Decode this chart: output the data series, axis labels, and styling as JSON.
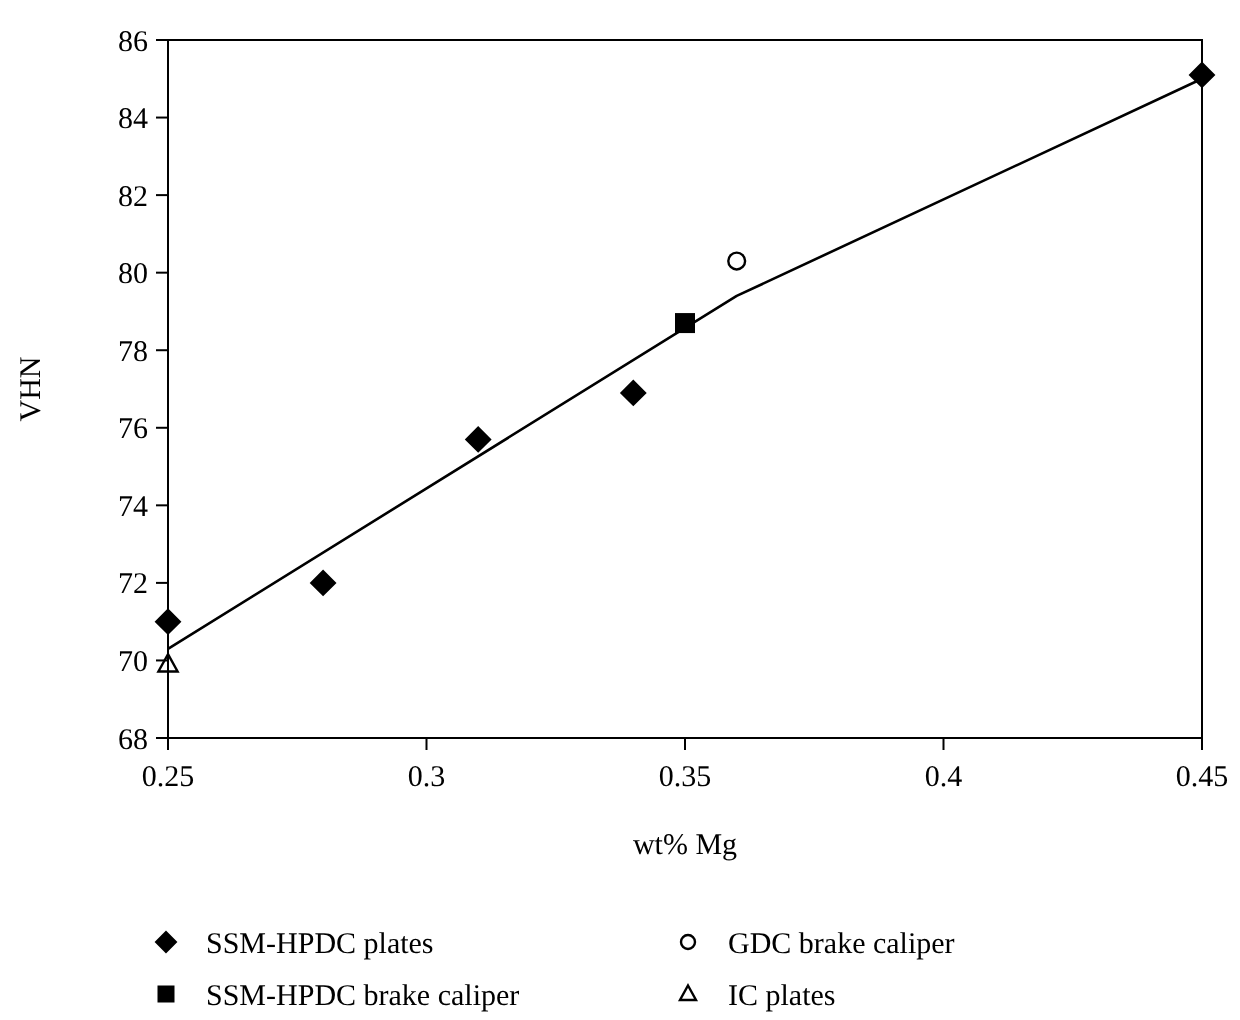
{
  "chart_data": {
    "type": "scatter",
    "xlabel": "wt% Mg",
    "ylabel": "VHN",
    "xlim": [
      0.25,
      0.45
    ],
    "xticks": [
      0.25,
      0.3,
      0.35,
      0.4,
      0.45
    ],
    "ylim": [
      68,
      86
    ],
    "yticks": [
      68,
      70,
      72,
      74,
      76,
      78,
      80,
      82,
      84,
      86
    ],
    "grid": false,
    "legend": "bottom",
    "series": [
      {
        "name": "SSM-HPDC plates",
        "color": "#000000",
        "marker": "diamond",
        "x": [
          0.25,
          0.28,
          0.31,
          0.34,
          0.45
        ],
        "values": [
          71.0,
          72.0,
          75.7,
          76.9,
          85.1
        ]
      },
      {
        "name": "GDC brake caliper",
        "color": "#000000",
        "marker": "circle",
        "x": [
          0.36
        ],
        "values": [
          80.3
        ]
      },
      {
        "name": "SSM-HPDC brake caliper",
        "color": "#000000",
        "marker": "square",
        "x": [
          0.35
        ],
        "values": [
          78.7
        ]
      },
      {
        "name": "IC plates",
        "color": "#000000",
        "marker": "triangle",
        "x": [
          0.25
        ],
        "values": [
          69.9
        ]
      },
      {
        "type": "line",
        "color": "#000000",
        "marker": "none",
        "line_style": "solid",
        "x": [
          0.25,
          0.36,
          0.45
        ],
        "values": [
          70.3,
          79.4,
          85.0
        ]
      }
    ]
  }
}
